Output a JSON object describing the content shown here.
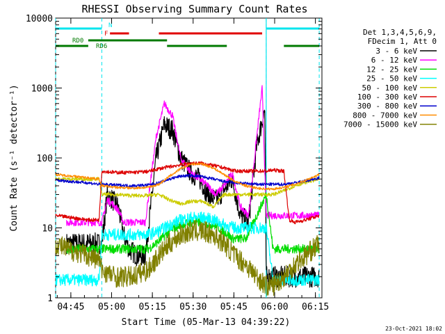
{
  "colors": {
    "bg": "#ffffff",
    "axis": "#000000",
    "flag_cyan": "#00e5ee",
    "flag_red": "#e00000",
    "flag_green": "#007a00"
  },
  "chart_data": {
    "type": "line",
    "title": "RHESSI Observing Summary Count Rates",
    "xlabel": "Start Time (05-Mar-13 04:39:22)",
    "ylabel": "Count Rate (s⁻¹ detector⁻¹)",
    "ylog": true,
    "ylim": [
      1,
      10000
    ],
    "xlim_minutes": [
      0,
      98
    ],
    "x_ticks": [
      "04:45",
      "05:00",
      "05:15",
      "05:30",
      "05:45",
      "06:00",
      "06:15"
    ],
    "x_tick_minutes": [
      5.6,
      20.6,
      35.6,
      50.6,
      65.6,
      80.6,
      95.6
    ],
    "y_ticks": [
      "1",
      "10",
      "100",
      "1000",
      "10000"
    ],
    "y_tick_values": [
      1,
      10,
      100,
      1000,
      10000
    ],
    "legend_header": [
      "Det 1,3,4,5,6,9,",
      "FDecim 1, Att 0"
    ],
    "footer_date": "23-Oct-2021 18:02",
    "flag_labels": {
      "n": "N",
      "f": "F",
      "rd0": "RD0",
      "rd6": "RD6"
    },
    "dashed_markers_minutes": [
      0,
      17,
      77.5,
      97
    ],
    "solid_markers_minutes": [
      77.5
    ],
    "series": [
      {
        "name": "3 - 6 keV",
        "color": "#000000",
        "x": [
          4,
          8,
          12,
          15,
          17,
          19,
          21,
          23,
          25,
          27,
          30,
          33,
          37,
          40,
          43,
          46,
          50,
          53,
          56,
          59,
          62,
          65,
          68,
          71,
          74,
          77,
          77.5,
          80,
          84,
          88,
          92,
          97
        ],
        "y": [
          6,
          6,
          6,
          6,
          6,
          30,
          25,
          20,
          8,
          5,
          4,
          4,
          100,
          300,
          250,
          100,
          60,
          50,
          30,
          25,
          35,
          50,
          15,
          12,
          150,
          500,
          2,
          2,
          2,
          2,
          2,
          2
        ]
      },
      {
        "name": "6 - 12 keV",
        "color": "#ff00ff",
        "x": [
          4,
          8,
          12,
          15,
          17,
          19,
          21,
          23,
          25,
          27,
          30,
          33,
          37,
          40,
          43,
          46,
          50,
          53,
          56,
          59,
          62,
          65,
          68,
          71,
          74,
          76,
          77.5,
          80,
          84,
          88,
          92,
          97
        ],
        "y": [
          12,
          12,
          12,
          12,
          12,
          25,
          22,
          18,
          12,
          12,
          12,
          12,
          200,
          600,
          400,
          100,
          60,
          50,
          40,
          30,
          40,
          60,
          20,
          15,
          200,
          1000,
          15,
          15,
          15,
          15,
          15,
          15
        ]
      },
      {
        "name": "12 - 25 keV",
        "color": "#00dd00",
        "x": [
          4,
          10,
          16,
          17,
          22,
          28,
          34,
          37,
          42,
          46,
          50,
          54,
          58,
          62,
          65,
          70,
          74,
          77.5,
          80,
          86,
          92,
          97
        ],
        "y": [
          5,
          5,
          5,
          5,
          5,
          5,
          5,
          6,
          9,
          11,
          12,
          12,
          11,
          9,
          7,
          7,
          15,
          30,
          5,
          5,
          5,
          5
        ]
      },
      {
        "name": "25 - 50 keV",
        "color": "#00ffff",
        "x": [
          0,
          6,
          12,
          16,
          17,
          22,
          28,
          34,
          38,
          42,
          46,
          50,
          54,
          58,
          62,
          66,
          70,
          74,
          77.5,
          80,
          86,
          92,
          97
        ],
        "y": [
          1.8,
          1.8,
          1.8,
          1.8,
          8,
          8,
          8,
          8,
          9,
          11,
          13,
          14,
          14,
          13,
          11,
          10,
          10,
          10,
          10,
          1.8,
          1.8,
          1.8,
          1.8
        ]
      },
      {
        "name": "50 - 100 keV",
        "color": "#cccc00",
        "x": [
          0,
          6,
          12,
          16,
          17,
          22,
          28,
          34,
          38,
          42,
          46,
          50,
          54,
          58,
          62,
          66,
          70,
          74,
          77.5,
          80,
          84,
          88,
          92,
          97
        ],
        "y": [
          50,
          50,
          50,
          50,
          30,
          30,
          29,
          29,
          30,
          25,
          22,
          24,
          24,
          20,
          30,
          30,
          30,
          30,
          30,
          30,
          34,
          40,
          45,
          50
        ]
      },
      {
        "name": "100 - 300 keV",
        "color": "#dd0000",
        "x": [
          0,
          6,
          12,
          16,
          17,
          22,
          28,
          34,
          38,
          42,
          46,
          50,
          54,
          58,
          62,
          66,
          70,
          74,
          77.5,
          80,
          84,
          86,
          88,
          92,
          97
        ],
        "y": [
          15,
          14,
          13,
          13,
          65,
          62,
          62,
          64,
          70,
          75,
          80,
          84,
          84,
          78,
          72,
          65,
          65,
          65,
          65,
          67,
          65,
          13,
          12,
          13,
          15
        ]
      },
      {
        "name": "300 - 800 keV",
        "color": "#0000cc",
        "x": [
          0,
          6,
          12,
          16,
          17,
          22,
          28,
          34,
          38,
          42,
          46,
          50,
          54,
          58,
          62,
          66,
          70,
          74,
          77.5,
          80,
          84,
          88,
          92,
          97
        ],
        "y": [
          48,
          46,
          44,
          42,
          42,
          41,
          40,
          41,
          44,
          50,
          55,
          56,
          54,
          50,
          46,
          44,
          43,
          42,
          42,
          42,
          42,
          44,
          47,
          52
        ]
      },
      {
        "name": "800 - 7000 keV",
        "color": "#ff8c00",
        "x": [
          0,
          6,
          12,
          16,
          17,
          22,
          28,
          34,
          38,
          42,
          46,
          50,
          54,
          58,
          62,
          66,
          70,
          74,
          77.5,
          80,
          84,
          88,
          92,
          97
        ],
        "y": [
          58,
          55,
          52,
          50,
          40,
          38,
          37,
          38,
          42,
          55,
          70,
          82,
          82,
          72,
          58,
          46,
          40,
          37,
          36,
          36,
          38,
          42,
          48,
          58
        ]
      },
      {
        "name": "7000 - 15000 keV",
        "color": "#808000",
        "x": [
          0,
          4,
          8,
          12,
          16,
          17,
          22,
          28,
          34,
          38,
          42,
          46,
          50,
          54,
          58,
          62,
          66,
          70,
          74,
          77.5,
          80,
          84,
          88,
          92,
          97
        ],
        "y": [
          6,
          5,
          4.5,
          4,
          3.5,
          2.5,
          2,
          2,
          2.5,
          4,
          6,
          8,
          9,
          9,
          8,
          6,
          4,
          3,
          2,
          1.5,
          1.5,
          2,
          3,
          4,
          6
        ]
      }
    ],
    "flags": [
      {
        "label_key": "n",
        "color": "#00e5ee",
        "segments": [
          [
            0,
            17
          ],
          [
            77.5,
            97
          ]
        ]
      },
      {
        "label_key": "f",
        "color": "#e00000",
        "segments": [
          [
            20,
            27
          ],
          [
            38,
            76
          ]
        ]
      },
      {
        "label_key": "rd0",
        "color": "#007a00",
        "segments": [
          [
            12,
            41
          ]
        ]
      },
      {
        "label_key": "rd6",
        "color": "#007a00",
        "segments": [
          [
            0,
            12
          ],
          [
            41,
            63
          ],
          [
            84,
            97
          ]
        ]
      }
    ]
  }
}
